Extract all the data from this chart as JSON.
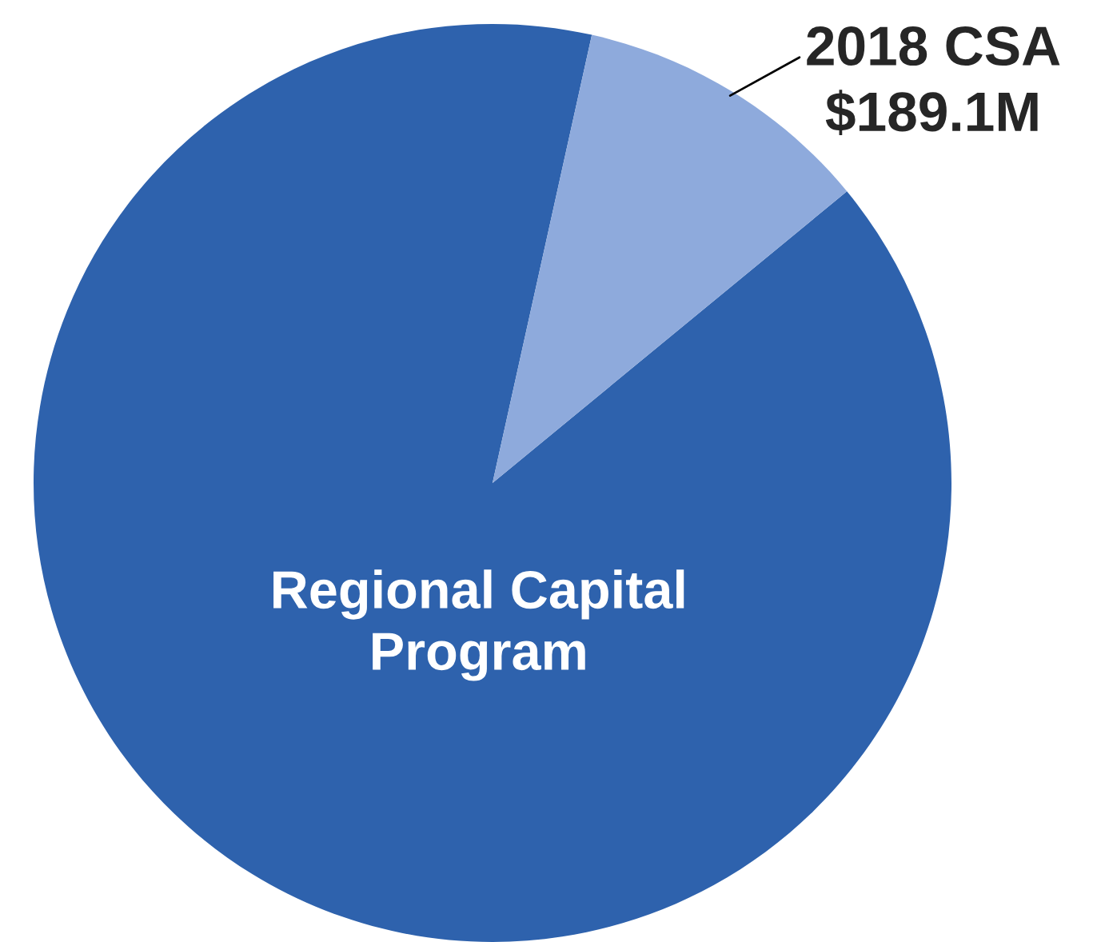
{
  "chart_data": {
    "type": "pie",
    "categories": [
      "Regional Capital Program",
      "2018 CSA"
    ],
    "values": [
      1600,
      189.1
    ],
    "colors": [
      "#2e62ad",
      "#8eaadc"
    ],
    "value_labels": [
      null,
      "$189.1M"
    ]
  }
}
